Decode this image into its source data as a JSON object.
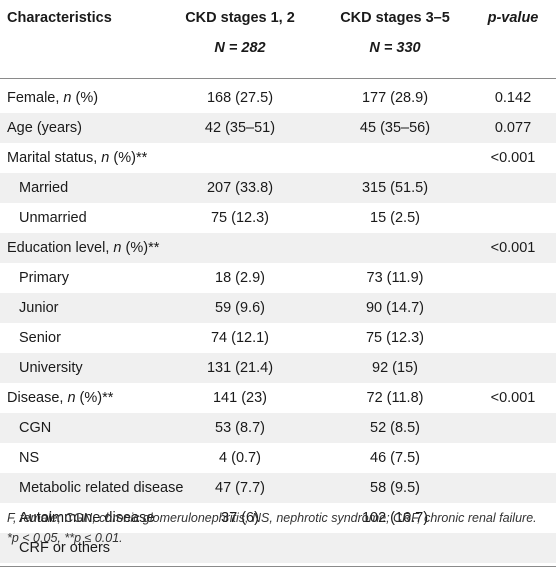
{
  "header": {
    "col0": "Characteristics",
    "col1_line1": "CKD stages 1, 2",
    "col1_line2": "N = 282",
    "col2_line1": "CKD stages 3–5",
    "col2_line2": "N = 330",
    "col3": "p-value"
  },
  "rows": [
    {
      "label": "Female, ",
      "label_em": "n",
      "label_tail": " (%)",
      "indent": false,
      "v1": "168 (27.5)",
      "v2": "177 (28.9)",
      "p": "0.142"
    },
    {
      "label": "Age (years)",
      "label_em": "",
      "label_tail": "",
      "indent": false,
      "v1": "42 (35–51)",
      "v2": "45 (35–56)",
      "p": "0.077"
    },
    {
      "label": "Marital status, ",
      "label_em": "n",
      "label_tail": " (%)**",
      "indent": false,
      "v1": "",
      "v2": "",
      "p": "<0.001"
    },
    {
      "label": "Married",
      "label_em": "",
      "label_tail": "",
      "indent": true,
      "v1": "207 (33.8)",
      "v2": "315 (51.5)",
      "p": ""
    },
    {
      "label": "Unmarried",
      "label_em": "",
      "label_tail": "",
      "indent": true,
      "v1": "75 (12.3)",
      "v2": "15 (2.5)",
      "p": ""
    },
    {
      "label": "Education level, ",
      "label_em": "n",
      "label_tail": " (%)**",
      "indent": false,
      "v1": "",
      "v2": "",
      "p": "<0.001"
    },
    {
      "label": "Primary",
      "label_em": "",
      "label_tail": "",
      "indent": true,
      "v1": "18 (2.9)",
      "v2": "73 (11.9)",
      "p": ""
    },
    {
      "label": "Junior",
      "label_em": "",
      "label_tail": "",
      "indent": true,
      "v1": "59 (9.6)",
      "v2": "90 (14.7)",
      "p": ""
    },
    {
      "label": "Senior",
      "label_em": "",
      "label_tail": "",
      "indent": true,
      "v1": "74 (12.1)",
      "v2": "75 (12.3)",
      "p": ""
    },
    {
      "label": "University",
      "label_em": "",
      "label_tail": "",
      "indent": true,
      "v1": "131 (21.4)",
      "v2": "92 (15)",
      "p": ""
    },
    {
      "label": "Disease, ",
      "label_em": "n",
      "label_tail": " (%)**",
      "indent": false,
      "v1": "141 (23)",
      "v2": "72 (11.8)",
      "p": "<0.001"
    },
    {
      "label": "CGN",
      "label_em": "",
      "label_tail": "",
      "indent": true,
      "v1": "53 (8.7)",
      "v2": "52 (8.5)",
      "p": ""
    },
    {
      "label": "NS",
      "label_em": "",
      "label_tail": "",
      "indent": true,
      "v1": "4 (0.7)",
      "v2": "46 (7.5)",
      "p": ""
    },
    {
      "label": "Metabolic related disease",
      "label_em": "",
      "label_tail": "",
      "indent": true,
      "v1": "47 (7.7)",
      "v2": "58 (9.5)",
      "p": ""
    },
    {
      "label": "Autoimmune disease",
      "label_em": "",
      "label_tail": "",
      "indent": true,
      "v1": "37 (6)",
      "v2": "102 (16.7)",
      "p": ""
    },
    {
      "label": "CRF or others",
      "label_em": "",
      "label_tail": "",
      "indent": true,
      "v1": "",
      "v2": "",
      "p": ""
    }
  ],
  "footnote": "F, female; CGN, chronic glomerulonephritis; NS, nephrotic syndrome; CRF, chronic renal failure. *p < 0.05, **p ≤ 0.01."
}
